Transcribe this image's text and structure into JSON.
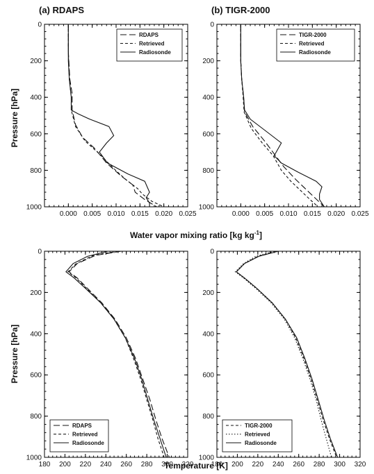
{
  "figure": {
    "top_xlabel": "Water vapor mixing ratio [kg kg",
    "top_xlabel_sup": "-1",
    "top_xlabel_end": "]",
    "bottom_xlabel": "Temperature [K]",
    "ylabel": "Pressure [hPa]"
  },
  "chart_data": [
    {
      "type": "line",
      "title": "(a) RDAPS",
      "xlabel": "",
      "ylabel": "Pressure [hPa]",
      "xlim": [
        -0.005,
        0.025
      ],
      "ylim": [
        1000,
        0
      ],
      "xticks": [
        0.0,
        0.005,
        0.01,
        0.015,
        0.02,
        0.025
      ],
      "xtick_labels": [
        "0.000",
        "0.005",
        "0.010",
        "0.015",
        "0.020",
        "0.025"
      ],
      "yticks": [
        0,
        200,
        400,
        600,
        800,
        1000
      ],
      "ytick_labels": [
        "0",
        "200",
        "400",
        "600",
        "800",
        "1000"
      ],
      "legend_position": "top-right",
      "series": [
        {
          "name": "RDAPS",
          "style": "longdash",
          "points": [
            [
              0.0,
              0
            ],
            [
              0.0,
              150
            ],
            [
              0.0003,
              300
            ],
            [
              0.0008,
              380
            ],
            [
              0.0008,
              470
            ],
            [
              0.0015,
              550
            ],
            [
              0.003,
              620
            ],
            [
              0.0055,
              680
            ],
            [
              0.008,
              760
            ],
            [
              0.011,
              830
            ],
            [
              0.0135,
              880
            ],
            [
              0.014,
              920
            ],
            [
              0.016,
              960
            ],
            [
              0.0185,
              1000
            ]
          ]
        },
        {
          "name": "Retrieved",
          "style": "shortdash",
          "points": [
            [
              0.0,
              0
            ],
            [
              0.0,
              150
            ],
            [
              0.0002,
              300
            ],
            [
              0.0006,
              400
            ],
            [
              0.0006,
              470
            ],
            [
              0.0015,
              560
            ],
            [
              0.0035,
              640
            ],
            [
              0.0065,
              710
            ],
            [
              0.0095,
              790
            ],
            [
              0.012,
              850
            ],
            [
              0.0145,
              900
            ],
            [
              0.0155,
              930
            ],
            [
              0.0175,
              970
            ],
            [
              0.02,
              1000
            ]
          ]
        },
        {
          "name": "Radiosonde",
          "style": "solid",
          "points": [
            [
              0.0,
              0
            ],
            [
              0.0,
              200
            ],
            [
              0.0002,
              300
            ],
            [
              0.0006,
              400
            ],
            [
              0.0006,
              470
            ],
            [
              0.002,
              490
            ],
            [
              0.0045,
              520
            ],
            [
              0.0085,
              560
            ],
            [
              0.0095,
              610
            ],
            [
              0.008,
              650
            ],
            [
              0.0065,
              700
            ],
            [
              0.0082,
              760
            ],
            [
              0.0125,
              820
            ],
            [
              0.016,
              860
            ],
            [
              0.017,
              920
            ],
            [
              0.0163,
              950
            ],
            [
              0.017,
              980
            ],
            [
              0.017,
              1000
            ]
          ]
        }
      ]
    },
    {
      "type": "line",
      "title": "(b) TIGR-2000",
      "xlabel": "",
      "ylabel": "",
      "xlim": [
        -0.005,
        0.025
      ],
      "ylim": [
        1000,
        0
      ],
      "xticks": [
        0.0,
        0.005,
        0.01,
        0.015,
        0.02,
        0.025
      ],
      "xtick_labels": [
        "0.000",
        "0.005",
        "0.010",
        "0.015",
        "0.020",
        "0.025"
      ],
      "yticks": [
        0,
        200,
        400,
        600,
        800,
        1000
      ],
      "ytick_labels": [
        "0",
        "200",
        "400",
        "600",
        "800",
        "1000"
      ],
      "legend_position": "top-right",
      "series": [
        {
          "name": "TIGR-2000",
          "style": "longdash",
          "points": [
            [
              0.0,
              0
            ],
            [
              0.0,
              200
            ],
            [
              0.0002,
              300
            ],
            [
              0.0006,
              400
            ],
            [
              0.0008,
              480
            ],
            [
              0.0025,
              560
            ],
            [
              0.005,
              640
            ],
            [
              0.007,
              710
            ],
            [
              0.009,
              780
            ],
            [
              0.0115,
              850
            ],
            [
              0.0135,
              900
            ],
            [
              0.0155,
              950
            ],
            [
              0.0175,
              1000
            ]
          ]
        },
        {
          "name": "Retrieved",
          "style": "shortdash",
          "points": [
            [
              0.0,
              0
            ],
            [
              0.0,
              200
            ],
            [
              0.0002,
              300
            ],
            [
              0.0005,
              400
            ],
            [
              0.0007,
              480
            ],
            [
              0.0022,
              570
            ],
            [
              0.0045,
              650
            ],
            [
              0.0068,
              720
            ],
            [
              0.0085,
              800
            ],
            [
              0.0105,
              860
            ],
            [
              0.0125,
              910
            ],
            [
              0.0145,
              960
            ],
            [
              0.0162,
              1000
            ]
          ]
        },
        {
          "name": "Radiosonde",
          "style": "solid",
          "points": [
            [
              0.0,
              0
            ],
            [
              0.0,
              200
            ],
            [
              0.0002,
              300
            ],
            [
              0.0006,
              400
            ],
            [
              0.0008,
              470
            ],
            [
              0.002,
              520
            ],
            [
              0.005,
              580
            ],
            [
              0.0085,
              650
            ],
            [
              0.007,
              720
            ],
            [
              0.0085,
              760
            ],
            [
              0.012,
              810
            ],
            [
              0.0158,
              860
            ],
            [
              0.017,
              890
            ],
            [
              0.0165,
              930
            ],
            [
              0.0165,
              960
            ],
            [
              0.0175,
              1000
            ]
          ]
        }
      ]
    },
    {
      "type": "line",
      "title": "",
      "xlabel": "Temperature [K]",
      "ylabel": "Pressure [hPa]",
      "xlim": [
        180,
        320
      ],
      "ylim": [
        1000,
        0
      ],
      "xticks": [
        180,
        200,
        220,
        240,
        260,
        280,
        300,
        320
      ],
      "xtick_labels": [
        "180",
        "200",
        "220",
        "240",
        "260",
        "280",
        "300",
        "320"
      ],
      "yticks": [
        0,
        200,
        400,
        600,
        800,
        1000
      ],
      "ytick_labels": [
        "0",
        "200",
        "400",
        "600",
        "800",
        "1000"
      ],
      "legend_position": "bottom-left",
      "series": [
        {
          "name": "RDAPS",
          "style": "longdash",
          "points": [
            [
              255,
              0
            ],
            [
              230,
              20
            ],
            [
              212,
              60
            ],
            [
              204,
              100
            ],
            [
              212,
              130
            ],
            [
              222,
              180
            ],
            [
              236,
              250
            ],
            [
              249,
              330
            ],
            [
              260,
              420
            ],
            [
              269,
              520
            ],
            [
              276,
              620
            ],
            [
              283,
              720
            ],
            [
              289,
              820
            ],
            [
              295,
              910
            ],
            [
              302,
              1000
            ]
          ]
        },
        {
          "name": "Retrieved",
          "style": "shortdash",
          "points": [
            [
              252,
              0
            ],
            [
              228,
              20
            ],
            [
              211,
              60
            ],
            [
              203,
              100
            ],
            [
              211,
              130
            ],
            [
              221,
              180
            ],
            [
              235,
              250
            ],
            [
              248,
              330
            ],
            [
              259,
              420
            ],
            [
              267,
              520
            ],
            [
              274,
              620
            ],
            [
              280,
              720
            ],
            [
              286,
              820
            ],
            [
              291,
              910
            ],
            [
              297,
              1000
            ]
          ]
        },
        {
          "name": "Radiosonde",
          "style": "solid",
          "points": [
            [
              242,
              0
            ],
            [
              222,
              25
            ],
            [
              208,
              60
            ],
            [
              201,
              100
            ],
            [
              209,
              130
            ],
            [
              220,
              180
            ],
            [
              235,
              250
            ],
            [
              248,
              330
            ],
            [
              259,
              420
            ],
            [
              268,
              520
            ],
            [
              275,
              620
            ],
            [
              281,
              720
            ],
            [
              287,
              820
            ],
            [
              293,
              910
            ],
            [
              299,
              1000
            ]
          ]
        }
      ]
    },
    {
      "type": "line",
      "title": "",
      "xlabel": "Temperature [K]",
      "ylabel": "",
      "xlim": [
        180,
        320
      ],
      "ylim": [
        1000,
        0
      ],
      "xticks": [
        180,
        200,
        220,
        240,
        260,
        280,
        300,
        320
      ],
      "xtick_labels": [
        "180",
        "200",
        "220",
        "240",
        "260",
        "280",
        "300",
        "320"
      ],
      "yticks": [
        0,
        200,
        400,
        600,
        800,
        1000
      ],
      "ytick_labels": [
        "0",
        "200",
        "400",
        "600",
        "800",
        "1000"
      ],
      "legend_position": "bottom-left",
      "series": [
        {
          "name": "TIGR-2000",
          "style": "shortdash",
          "points": [
            [
              238,
              0
            ],
            [
              220,
              25
            ],
            [
              207,
              60
            ],
            [
              199,
              100
            ],
            [
              207,
              130
            ],
            [
              219,
              180
            ],
            [
              234,
              250
            ],
            [
              247,
              330
            ],
            [
              257,
              420
            ],
            [
              265,
              520
            ],
            [
              272,
              620
            ],
            [
              278,
              720
            ],
            [
              284,
              820
            ],
            [
              290,
              910
            ],
            [
              297,
              1000
            ]
          ]
        },
        {
          "name": "Retrieved",
          "style": "dot",
          "points": [
            [
              236,
              0
            ],
            [
              218,
              25
            ],
            [
              206,
              60
            ],
            [
              198,
              100
            ],
            [
              206,
              130
            ],
            [
              218,
              180
            ],
            [
              233,
              250
            ],
            [
              246,
              330
            ],
            [
              256,
              420
            ],
            [
              264,
              520
            ],
            [
              271,
              620
            ],
            [
              277,
              720
            ],
            [
              282,
              820
            ],
            [
              287,
              910
            ],
            [
              292,
              1000
            ]
          ]
        },
        {
          "name": "Radiosonde",
          "style": "solid",
          "points": [
            [
              240,
              0
            ],
            [
              221,
              25
            ],
            [
              207,
              60
            ],
            [
              199,
              100
            ],
            [
              207,
              130
            ],
            [
              219,
              180
            ],
            [
              234,
              250
            ],
            [
              247,
              330
            ],
            [
              258,
              420
            ],
            [
              266,
              520
            ],
            [
              273,
              620
            ],
            [
              279,
              720
            ],
            [
              285,
              820
            ],
            [
              291,
              910
            ],
            [
              298,
              1000
            ]
          ]
        }
      ]
    }
  ]
}
